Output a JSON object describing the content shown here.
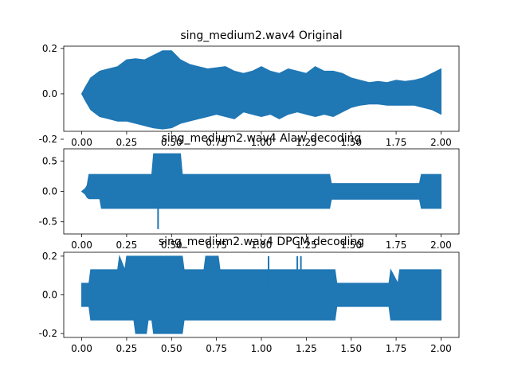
{
  "chart_data": [
    {
      "type": "area",
      "title": "sing_medium2.wav4 Original",
      "xlabel": "",
      "ylabel": "",
      "xlim": [
        -0.1,
        2.1
      ],
      "ylim": [
        -0.165,
        0.21
      ],
      "xticks": [
        "0.00",
        "0.25",
        "0.50",
        "0.75",
        "1.00",
        "1.25",
        "1.50",
        "1.75",
        "2.00"
      ],
      "yticks": [
        "-0.2",
        "0.0",
        "0.2"
      ],
      "grid": false,
      "series": [
        {
          "color": "#1f77b4",
          "x": [
            0.0,
            0.02,
            0.05,
            0.1,
            0.15,
            0.2,
            0.25,
            0.3,
            0.35,
            0.4,
            0.45,
            0.5,
            0.55,
            0.6,
            0.65,
            0.7,
            0.75,
            0.8,
            0.85,
            0.9,
            0.95,
            1.0,
            1.05,
            1.1,
            1.15,
            1.2,
            1.25,
            1.3,
            1.35,
            1.4,
            1.45,
            1.5,
            1.55,
            1.6,
            1.65,
            1.7,
            1.75,
            1.8,
            1.85,
            1.9,
            1.95,
            2.0
          ],
          "upper": [
            0.0,
            0.03,
            0.07,
            0.1,
            0.11,
            0.12,
            0.15,
            0.155,
            0.15,
            0.17,
            0.19,
            0.19,
            0.15,
            0.13,
            0.12,
            0.11,
            0.115,
            0.12,
            0.1,
            0.09,
            0.1,
            0.12,
            0.1,
            0.09,
            0.11,
            0.1,
            0.09,
            0.12,
            0.1,
            0.1,
            0.09,
            0.07,
            0.06,
            0.05,
            0.055,
            0.05,
            0.06,
            0.055,
            0.06,
            0.07,
            0.09,
            0.11
          ],
          "lower": [
            0.0,
            -0.03,
            -0.07,
            -0.1,
            -0.11,
            -0.12,
            -0.12,
            -0.13,
            -0.14,
            -0.15,
            -0.155,
            -0.15,
            -0.13,
            -0.12,
            -0.11,
            -0.1,
            -0.09,
            -0.1,
            -0.11,
            -0.08,
            -0.09,
            -0.1,
            -0.09,
            -0.11,
            -0.09,
            -0.08,
            -0.09,
            -0.1,
            -0.09,
            -0.1,
            -0.08,
            -0.06,
            -0.05,
            -0.045,
            -0.045,
            -0.05,
            -0.05,
            -0.05,
            -0.05,
            -0.06,
            -0.07,
            -0.09
          ]
        }
      ]
    },
    {
      "type": "area",
      "title": "sing_medium2.wav4 Alaw decoding",
      "xlabel": "",
      "ylabel": "",
      "xlim": [
        -0.1,
        2.1
      ],
      "ylim": [
        -0.7,
        0.7
      ],
      "xticks": [
        "0.00",
        "0.25",
        "0.50",
        "0.75",
        "1.00",
        "1.25",
        "1.50",
        "1.75",
        "2.00"
      ],
      "yticks": [
        "-0.5",
        "0.0",
        "0.5"
      ],
      "grid": false,
      "series": [
        {
          "color": "#1f77b4",
          "x": [
            0.0,
            0.02,
            0.03,
            0.04,
            0.1,
            0.11,
            0.39,
            0.4,
            0.55,
            0.56,
            1.38,
            1.39,
            1.88,
            1.89,
            2.0
          ],
          "upper": [
            0.0,
            0.05,
            0.1,
            0.28,
            0.28,
            0.28,
            0.28,
            0.62,
            0.62,
            0.28,
            0.28,
            0.13,
            0.13,
            0.28,
            0.28
          ],
          "lower": [
            0.0,
            -0.05,
            -0.1,
            -0.12,
            -0.12,
            -0.28,
            -0.28,
            -0.28,
            -0.28,
            -0.28,
            -0.28,
            -0.13,
            -0.13,
            -0.28,
            -0.28
          ]
        }
      ],
      "spikes": [
        {
          "x": 0.425,
          "y": -0.62
        }
      ]
    },
    {
      "type": "area",
      "title": "sing_medium2.wav4 DPCM decoding",
      "xlabel": "",
      "ylabel": "",
      "xlim": [
        -0.1,
        2.1
      ],
      "ylim": [
        -0.22,
        0.22
      ],
      "xticks": [
        "0.00",
        "0.25",
        "0.50",
        "0.75",
        "1.00",
        "1.25",
        "1.50",
        "1.75",
        "2.00"
      ],
      "yticks": [
        "-0.2",
        "0.0",
        "0.2"
      ],
      "grid": false,
      "series": [
        {
          "color": "#1f77b4",
          "x": [
            0.0,
            0.02,
            0.04,
            0.05,
            0.2,
            0.21,
            0.24,
            0.25,
            0.29,
            0.3,
            0.36,
            0.37,
            0.39,
            0.4,
            0.56,
            0.57,
            0.68,
            0.69,
            0.76,
            0.77,
            1.41,
            1.42,
            1.71,
            1.72,
            1.76,
            1.77,
            2.0
          ],
          "upper": [
            0.06,
            0.06,
            0.06,
            0.13,
            0.13,
            0.2,
            0.13,
            0.2,
            0.2,
            0.2,
            0.2,
            0.2,
            0.2,
            0.2,
            0.2,
            0.13,
            0.13,
            0.2,
            0.2,
            0.13,
            0.13,
            0.06,
            0.06,
            0.13,
            0.06,
            0.13,
            0.13
          ],
          "lower": [
            -0.06,
            -0.06,
            -0.06,
            -0.13,
            -0.13,
            -0.13,
            -0.13,
            -0.13,
            -0.13,
            -0.2,
            -0.2,
            -0.13,
            -0.13,
            -0.2,
            -0.2,
            -0.13,
            -0.13,
            -0.13,
            -0.13,
            -0.13,
            -0.13,
            -0.06,
            -0.06,
            -0.13,
            -0.13,
            -0.13,
            -0.13
          ]
        }
      ],
      "spikes": [
        {
          "x": 1.04,
          "y": 0.2
        },
        {
          "x": 1.2,
          "y": 0.2
        },
        {
          "x": 1.22,
          "y": 0.2
        }
      ]
    }
  ]
}
